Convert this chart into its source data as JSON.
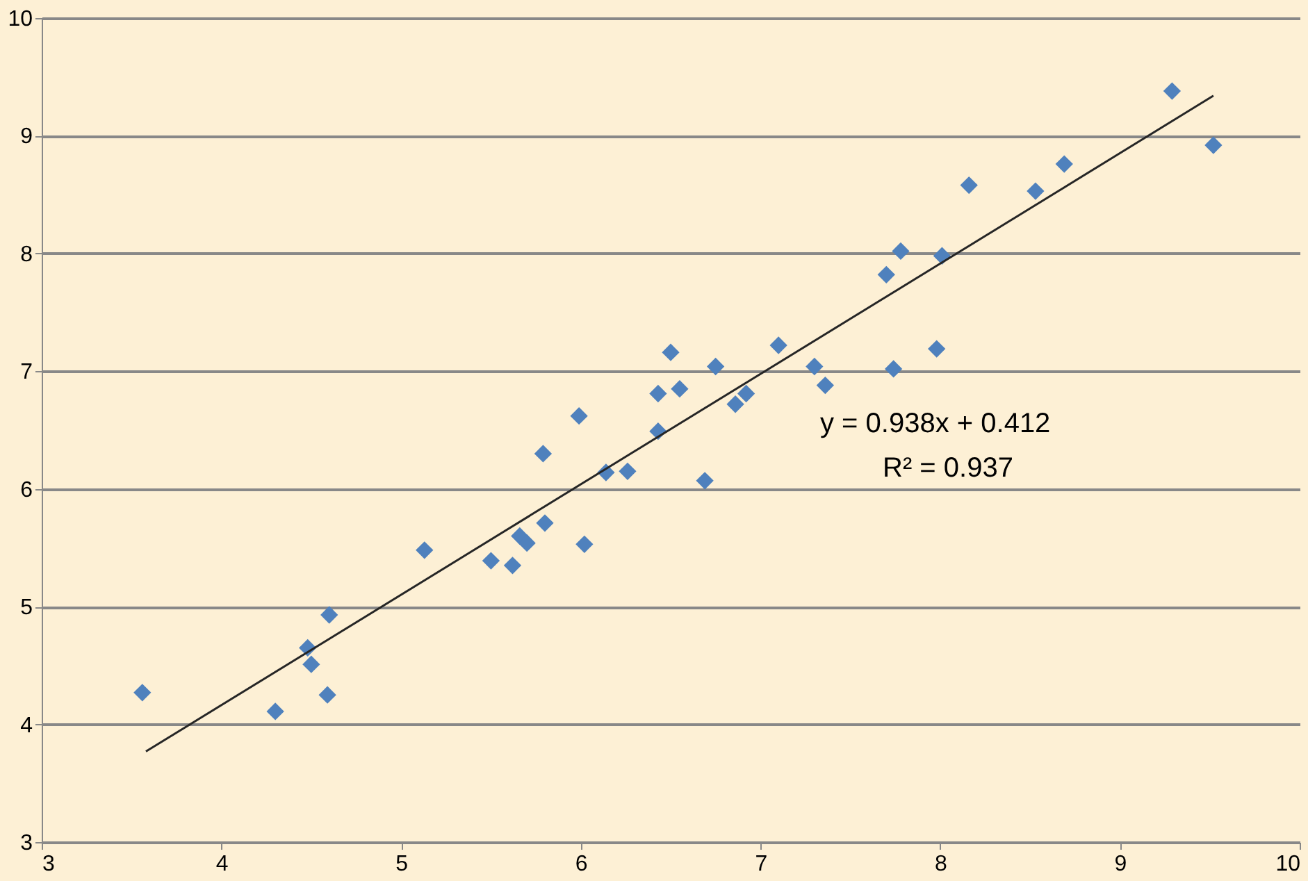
{
  "chart_data": {
    "type": "scatter",
    "xlim": [
      3,
      10
    ],
    "ylim": [
      3,
      10
    ],
    "xticks": [
      3,
      4,
      5,
      6,
      7,
      8,
      9,
      10
    ],
    "yticks": [
      3,
      4,
      5,
      6,
      7,
      8,
      9,
      10
    ],
    "grid": "y",
    "marker": "diamond",
    "annotations": [
      "y = 0.938x + 0.412",
      "R² = 0.937"
    ],
    "series": [
      {
        "color": "#4f81bd",
        "x": [
          3.56,
          4.3,
          4.48,
          4.5,
          4.59,
          4.6,
          5.13,
          5.5,
          5.62,
          5.66,
          5.7,
          5.8,
          6.02,
          5.79,
          5.99,
          6.14,
          6.26,
          6.43,
          6.43,
          6.55,
          6.5,
          6.75,
          6.86,
          6.92,
          6.69,
          7.1,
          7.3,
          7.36,
          7.74,
          7.98,
          7.7,
          7.78,
          8.01,
          8.16,
          8.53,
          8.69,
          9.29,
          9.52
        ],
        "values": [
          4.27,
          4.11,
          4.65,
          4.51,
          4.25,
          4.93,
          5.48,
          5.39,
          5.35,
          5.6,
          5.54,
          5.71,
          5.53,
          6.3,
          6.62,
          6.14,
          6.15,
          6.49,
          6.81,
          6.85,
          7.16,
          7.04,
          6.72,
          6.81,
          6.07,
          7.22,
          7.04,
          6.88,
          7.02,
          7.19,
          7.82,
          8.02,
          7.98,
          8.58,
          8.53,
          8.76,
          9.38,
          8.92
        ]
      },
      {
        "type": "line",
        "marker": "none",
        "line_style": "solid",
        "color": "#262626",
        "x": [
          3.58,
          9.52
        ],
        "values": [
          3.77,
          9.34
        ]
      }
    ]
  }
}
